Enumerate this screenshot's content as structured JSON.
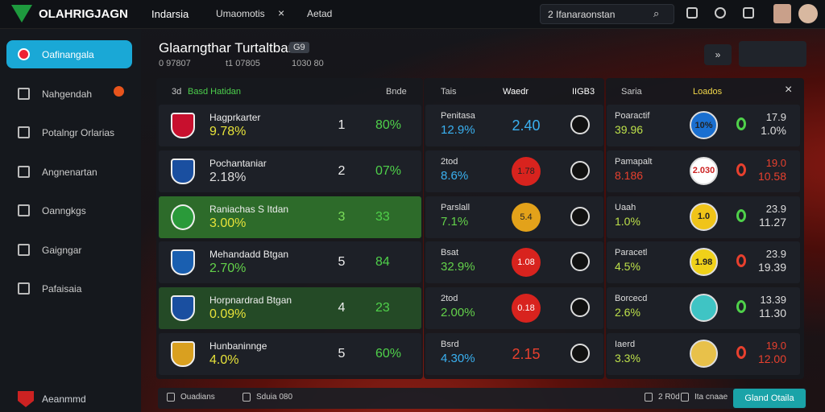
{
  "topbar": {
    "logo": "OLAHRIGJAGN",
    "tabs": [
      "Indarsia",
      "Umaomotis",
      "Aetad"
    ],
    "search": "2 Ifanaraonstan"
  },
  "sidebar": {
    "items": [
      "Oafinangala",
      "Nahgendah",
      "Potalngr Orlarias",
      "Angnenartan",
      "Oanngkgs",
      "Gaigngar",
      "Pafaisaia"
    ],
    "footer": "Aeanmmd"
  },
  "header": {
    "title": "Glaarngthar Turtaltbar",
    "badge": "G9",
    "subtitle": [
      "0 97807",
      "t1 07805",
      "1030 80"
    ]
  },
  "left_panel": {
    "headers": [
      "3d",
      "Basd Hatidan",
      "Bnde"
    ],
    "rows": [
      [
        "Hagprkarter",
        "9.78%",
        "1",
        "80%"
      ],
      [
        "Pochantaniar",
        "2.18%",
        "2",
        "07%"
      ],
      [
        "Raniachas S Itdan",
        "3.00%",
        "3",
        "33"
      ],
      [
        "Mehandadd Btgan",
        "2.70%",
        "5",
        "84"
      ],
      [
        "Horpnardrad Btgan",
        "0.09%",
        "4",
        "23"
      ],
      [
        "Hunbaninnge",
        "4.0%",
        "5",
        "60%"
      ]
    ]
  },
  "middle_panel": {
    "headers": [
      "Tais",
      "Waedr",
      "IIGB3"
    ],
    "rows": [
      [
        "Penitasa",
        "12.9%",
        "2.40"
      ],
      [
        "2tod",
        "8.6%",
        "1.78"
      ],
      [
        "Parslall",
        "7.1%",
        "5.4"
      ],
      [
        "Bsat",
        "32.9%",
        "1.08"
      ],
      [
        "2tod",
        "2.00%",
        "0.18"
      ],
      [
        "Bsrd",
        "4.30%",
        "2.15"
      ]
    ]
  },
  "right_panel": {
    "headers": [
      "Saria",
      "Loados"
    ],
    "rows": [
      [
        "Poaractif",
        "39.96",
        "10%",
        "17.9",
        "1.0%"
      ],
      [
        "Pamapalt",
        "8.186",
        "2.030",
        "19.0",
        "10.58"
      ],
      [
        "Uaah",
        "1.0%",
        "1.0",
        "23.9",
        "11.27"
      ],
      [
        "Paracetl",
        "4.5%",
        "1.98",
        "23.9",
        "19.39"
      ],
      [
        "Borcecd",
        "2.6%",
        "",
        "13.39",
        "11.30"
      ],
      [
        "Iaerd",
        "3.3%",
        "",
        "19.0",
        "12.00"
      ]
    ]
  },
  "footer": {
    "items": [
      "Ouadians",
      "Sduia 080",
      "2 R0d",
      "Ita cnaae"
    ],
    "button": "Gland Otaila"
  }
}
